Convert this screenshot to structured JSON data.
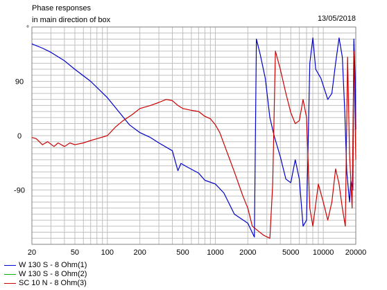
{
  "header": {
    "title_line1": "Phase responses",
    "title_line2": "in main direction of box",
    "date": "13/05/2018",
    "unit_symbol": "°"
  },
  "chart_data": {
    "type": "line",
    "title": "Phase responses in main direction of box",
    "xscale": "log",
    "xlim": [
      20,
      20000
    ],
    "ylim": [
      -180,
      180
    ],
    "grid": true,
    "x_ticks": [
      20,
      50,
      100,
      200,
      500,
      1000,
      2000,
      5000,
      10000,
      20000
    ],
    "x_tick_labels": [
      "20",
      "50",
      "100",
      "200",
      "500",
      "1000",
      "2000",
      "5000",
      "10000",
      "20000"
    ],
    "y_ticks": [
      90,
      0,
      -90
    ],
    "y_tick_labels": [
      "90",
      "0",
      "-90"
    ],
    "legend_position": "bottom-left",
    "series": [
      {
        "name": "W 130 S - 8 Ohm(1)",
        "color": "#0000cc",
        "points": [
          [
            20,
            152
          ],
          [
            25,
            145
          ],
          [
            30,
            138
          ],
          [
            40,
            124
          ],
          [
            50,
            110
          ],
          [
            70,
            90
          ],
          [
            100,
            63
          ],
          [
            130,
            38
          ],
          [
            160,
            18
          ],
          [
            200,
            5
          ],
          [
            250,
            -3
          ],
          [
            300,
            -12
          ],
          [
            400,
            -25
          ],
          [
            450,
            -58
          ],
          [
            480,
            -46
          ],
          [
            550,
            -52
          ],
          [
            700,
            -62
          ],
          [
            800,
            -74
          ],
          [
            1000,
            -80
          ],
          [
            1200,
            -95
          ],
          [
            1500,
            -130
          ],
          [
            2000,
            -145
          ],
          [
            2300,
            -168
          ],
          [
            2400,
            160
          ],
          [
            2600,
            135
          ],
          [
            2900,
            95
          ],
          [
            3200,
            30
          ],
          [
            3500,
            0
          ],
          [
            4000,
            -35
          ],
          [
            4500,
            -72
          ],
          [
            5000,
            -78
          ],
          [
            5500,
            -40
          ],
          [
            6000,
            -72
          ],
          [
            6500,
            -150
          ],
          [
            7000,
            -140
          ],
          [
            7500,
            120
          ],
          [
            8000,
            162
          ],
          [
            8500,
            110
          ],
          [
            9500,
            95
          ],
          [
            11000,
            60
          ],
          [
            12000,
            70
          ],
          [
            13000,
            120
          ],
          [
            14000,
            162
          ],
          [
            15000,
            130
          ],
          [
            15800,
            40
          ],
          [
            16500,
            -60
          ],
          [
            17500,
            -110
          ],
          [
            18000,
            -75
          ],
          [
            18800,
            -90
          ],
          [
            19200,
            160
          ],
          [
            19800,
            90
          ],
          [
            20000,
            10
          ]
        ]
      },
      {
        "name": "W 130 S - 8 Ohm(2)",
        "color": "#00aa00",
        "points": []
      },
      {
        "name": "SC 10 N - 8 Ohm(3)",
        "color": "#cc0000",
        "points": [
          [
            20,
            -3
          ],
          [
            22,
            -5
          ],
          [
            25,
            -15
          ],
          [
            28,
            -10
          ],
          [
            32,
            -18
          ],
          [
            35,
            -12
          ],
          [
            40,
            -18
          ],
          [
            45,
            -12
          ],
          [
            50,
            -15
          ],
          [
            60,
            -12
          ],
          [
            70,
            -8
          ],
          [
            80,
            -5
          ],
          [
            100,
            0
          ],
          [
            120,
            15
          ],
          [
            140,
            25
          ],
          [
            170,
            35
          ],
          [
            200,
            45
          ],
          [
            250,
            50
          ],
          [
            300,
            55
          ],
          [
            350,
            60
          ],
          [
            400,
            58
          ],
          [
            450,
            50
          ],
          [
            500,
            45
          ],
          [
            600,
            42
          ],
          [
            700,
            40
          ],
          [
            800,
            32
          ],
          [
            900,
            28
          ],
          [
            1000,
            18
          ],
          [
            1100,
            5
          ],
          [
            1300,
            -30
          ],
          [
            1500,
            -60
          ],
          [
            1800,
            -100
          ],
          [
            2000,
            -120
          ],
          [
            2200,
            -150
          ],
          [
            2500,
            -158
          ],
          [
            2800,
            -165
          ],
          [
            3200,
            -170
          ],
          [
            3400,
            -80
          ],
          [
            3600,
            140
          ],
          [
            4000,
            110
          ],
          [
            4500,
            70
          ],
          [
            5000,
            38
          ],
          [
            5500,
            20
          ],
          [
            6000,
            25
          ],
          [
            6500,
            60
          ],
          [
            7000,
            30
          ],
          [
            7500,
            -120
          ],
          [
            8000,
            -150
          ],
          [
            9000,
            -80
          ],
          [
            10000,
            -110
          ],
          [
            11000,
            -140
          ],
          [
            12000,
            -110
          ],
          [
            13000,
            -55
          ],
          [
            14000,
            -80
          ],
          [
            15000,
            -120
          ],
          [
            16000,
            -150
          ],
          [
            16800,
            130
          ],
          [
            17500,
            -30
          ],
          [
            18500,
            -120
          ],
          [
            19200,
            140
          ],
          [
            20000,
            -40
          ]
        ]
      }
    ]
  }
}
